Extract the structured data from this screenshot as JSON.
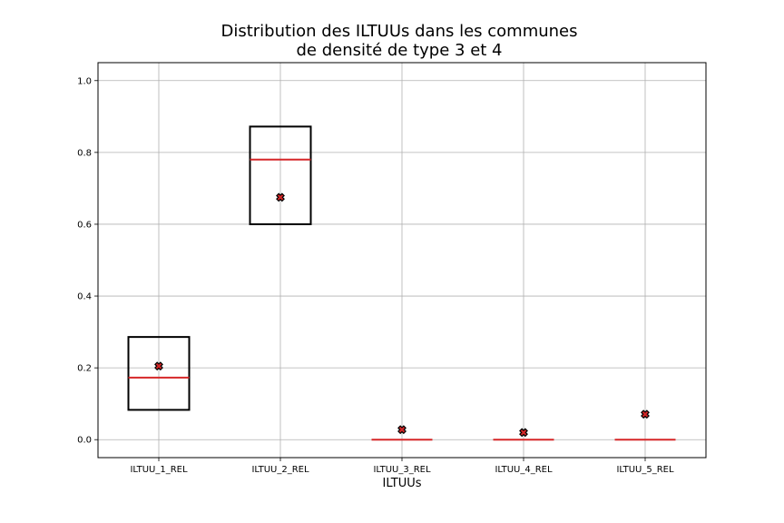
{
  "chart_data": {
    "type": "box",
    "title_lines": [
      "Distribution des ILTUUs dans les communes",
      "de densité de type 3 et 4"
    ],
    "xlabel": "ILTUUs",
    "ylabel": "",
    "ylim": [
      -0.05,
      1.05
    ],
    "yticks": [
      0.0,
      0.2,
      0.4,
      0.6,
      0.8,
      1.0
    ],
    "ytick_labels": [
      "0.0",
      "0.2",
      "0.4",
      "0.6",
      "0.8",
      "1.0"
    ],
    "grid": true,
    "categories": [
      "ILTUU_1_REL",
      "ILTUU_2_REL",
      "ILTUU_3_REL",
      "ILTUU_4_REL",
      "ILTUU_5_REL"
    ],
    "boxes": [
      {
        "q1": 0.083,
        "median": 0.173,
        "q3": 0.286,
        "mean": 0.205
      },
      {
        "q1": 0.6,
        "median": 0.78,
        "q3": 0.872,
        "mean": 0.675
      },
      {
        "q1": 0.0,
        "median": 0.0,
        "q3": 0.0,
        "mean": 0.028
      },
      {
        "q1": 0.0,
        "median": 0.0,
        "q3": 0.0,
        "mean": 0.02
      },
      {
        "q1": 0.0,
        "median": 0.0,
        "q3": 0.0,
        "mean": 0.071
      }
    ],
    "colors": {
      "box": "#000000",
      "median": "#d62728",
      "mean_marker": "#d62728",
      "grid": "#b0b0b0"
    }
  }
}
